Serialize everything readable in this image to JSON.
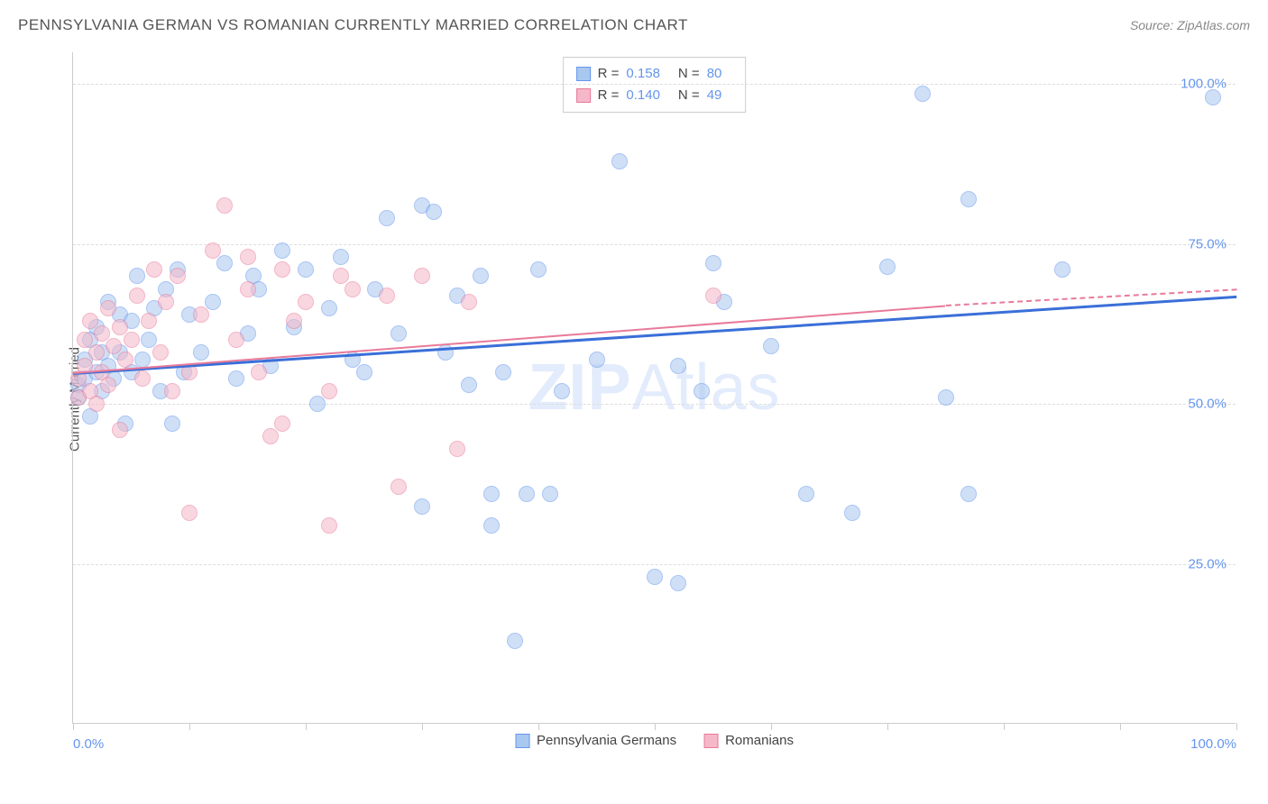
{
  "header": {
    "title": "PENNSYLVANIA GERMAN VS ROMANIAN CURRENTLY MARRIED CORRELATION CHART",
    "source": "Source: ZipAtlas.com"
  },
  "chart": {
    "type": "scatter",
    "watermark_a": "ZIP",
    "watermark_b": "Atlas",
    "y_axis_label": "Currently Married",
    "xlim": [
      0,
      100
    ],
    "ylim": [
      0,
      105
    ],
    "x_ticks": [
      0,
      10,
      20,
      30,
      40,
      50,
      60,
      70,
      80,
      90,
      100
    ],
    "x_tick_labels": {
      "0": "0.0%",
      "100": "100.0%"
    },
    "y_gridlines": [
      25,
      50,
      75,
      100
    ],
    "y_tick_labels": {
      "25": "25.0%",
      "50": "50.0%",
      "75": "75.0%",
      "100": "100.0%"
    },
    "background_color": "#ffffff",
    "grid_color": "#dddddd",
    "axis_color": "#cccccc",
    "tick_label_color": "#6495ed",
    "point_radius": 9,
    "point_opacity": 0.55,
    "series": [
      {
        "name": "Pennsylvania Germans",
        "fill_color": "#a8c8f0",
        "stroke_color": "#6495ed",
        "r_value": "0.158",
        "n_value": "80",
        "trendline": {
          "x1": 0,
          "y1": 55,
          "x2": 100,
          "y2": 67,
          "color": "#3a6fd8",
          "width": 2.5
        },
        "points": [
          [
            0.5,
            53
          ],
          [
            0.5,
            51
          ],
          [
            1,
            57
          ],
          [
            1,
            54
          ],
          [
            1.5,
            60
          ],
          [
            1.5,
            48
          ],
          [
            2,
            55
          ],
          [
            2,
            62
          ],
          [
            2.5,
            52
          ],
          [
            2.5,
            58
          ],
          [
            3,
            56
          ],
          [
            3,
            66
          ],
          [
            3.5,
            54
          ],
          [
            4,
            64
          ],
          [
            4,
            58
          ],
          [
            4.5,
            47
          ],
          [
            5,
            63
          ],
          [
            5,
            55
          ],
          [
            5.5,
            70
          ],
          [
            6,
            57
          ],
          [
            6.5,
            60
          ],
          [
            7,
            65
          ],
          [
            7.5,
            52
          ],
          [
            8,
            68
          ],
          [
            8.5,
            47
          ],
          [
            9,
            71
          ],
          [
            9.5,
            55
          ],
          [
            10,
            64
          ],
          [
            11,
            58
          ],
          [
            12,
            66
          ],
          [
            13,
            72
          ],
          [
            14,
            54
          ],
          [
            15,
            61
          ],
          [
            15.5,
            70
          ],
          [
            16,
            68
          ],
          [
            17,
            56
          ],
          [
            18,
            74
          ],
          [
            19,
            62
          ],
          [
            20,
            71
          ],
          [
            21,
            50
          ],
          [
            22,
            65
          ],
          [
            23,
            73
          ],
          [
            24,
            57
          ],
          [
            25,
            55
          ],
          [
            26,
            68
          ],
          [
            27,
            79
          ],
          [
            28,
            61
          ],
          [
            30,
            81
          ],
          [
            30,
            34
          ],
          [
            31,
            80
          ],
          [
            32,
            58
          ],
          [
            33,
            67
          ],
          [
            34,
            53
          ],
          [
            35,
            70
          ],
          [
            36,
            36
          ],
          [
            36,
            31
          ],
          [
            37,
            55
          ],
          [
            38,
            13
          ],
          [
            39,
            36
          ],
          [
            40,
            71
          ],
          [
            41,
            36
          ],
          [
            42,
            52
          ],
          [
            45,
            57
          ],
          [
            47,
            88
          ],
          [
            50,
            23
          ],
          [
            52,
            22
          ],
          [
            52,
            56
          ],
          [
            54,
            52
          ],
          [
            55,
            72
          ],
          [
            56,
            66
          ],
          [
            63,
            36
          ],
          [
            67,
            33
          ],
          [
            70,
            71.5
          ],
          [
            73,
            98.5
          ],
          [
            77,
            82
          ],
          [
            77,
            36
          ],
          [
            85,
            71
          ],
          [
            98,
            98
          ],
          [
            75,
            51
          ],
          [
            60,
            59
          ]
        ]
      },
      {
        "name": "Romanians",
        "fill_color": "#f5b8c8",
        "stroke_color": "#e87a9a",
        "r_value": "0.140",
        "n_value": "49",
        "trendline": {
          "x1": 0,
          "y1": 55,
          "x2": 75,
          "y2": 65.5,
          "color": "#e87a9a",
          "width": 2,
          "dashed_extension": true,
          "x2_ext": 100,
          "y2_ext": 68
        },
        "points": [
          [
            0.5,
            54
          ],
          [
            0.5,
            51
          ],
          [
            1,
            56
          ],
          [
            1,
            60
          ],
          [
            1.5,
            52
          ],
          [
            1.5,
            63
          ],
          [
            2,
            58
          ],
          [
            2,
            50
          ],
          [
            2.5,
            61
          ],
          [
            2.5,
            55
          ],
          [
            3,
            65
          ],
          [
            3,
            53
          ],
          [
            3.5,
            59
          ],
          [
            4,
            62
          ],
          [
            4,
            46
          ],
          [
            4.5,
            57
          ],
          [
            5,
            60
          ],
          [
            5.5,
            67
          ],
          [
            6,
            54
          ],
          [
            6.5,
            63
          ],
          [
            7,
            71
          ],
          [
            7.5,
            58
          ],
          [
            8,
            66
          ],
          [
            8.5,
            52
          ],
          [
            9,
            70
          ],
          [
            10,
            55
          ],
          [
            11,
            64
          ],
          [
            12,
            74
          ],
          [
            13,
            81
          ],
          [
            14,
            60
          ],
          [
            15,
            68
          ],
          [
            15,
            73
          ],
          [
            16,
            55
          ],
          [
            17,
            45
          ],
          [
            18,
            71
          ],
          [
            19,
            63
          ],
          [
            20,
            66
          ],
          [
            22,
            52
          ],
          [
            23,
            70
          ],
          [
            24,
            68
          ],
          [
            22,
            31
          ],
          [
            10,
            33
          ],
          [
            27,
            67
          ],
          [
            30,
            70
          ],
          [
            33,
            43
          ],
          [
            34,
            66
          ],
          [
            28,
            37
          ],
          [
            55,
            67
          ],
          [
            18,
            47
          ]
        ]
      }
    ],
    "correlation_legend": {
      "r_label": "R  =",
      "n_label": "N  ="
    },
    "bottom_legend_labels": [
      "Pennsylvania Germans",
      "Romanians"
    ]
  }
}
